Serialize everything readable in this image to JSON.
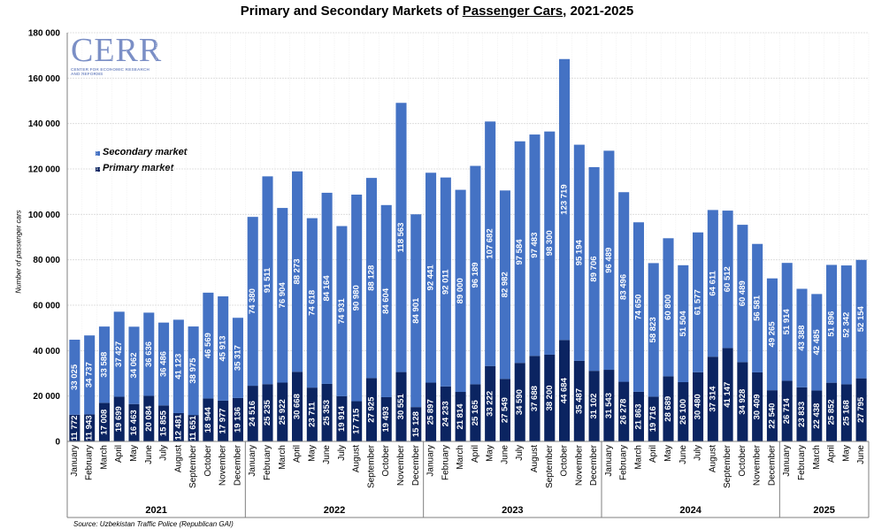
{
  "title_prefix": "Primary and Secondary Markets of ",
  "title_underlined": "Passenger Cars",
  "title_suffix": ", 2021-2025",
  "logo": {
    "name": "CERR",
    "subtitle": "CENTER FOR ECONOMIC RESEARCH AND REFORMS"
  },
  "ylabel": "Number of passenger cars",
  "source": "Source: Uzbekistan Traffic Police (Republican GAI)",
  "colors": {
    "primary": "#0b2461",
    "secondary": "#4472c4",
    "grid": "#d9d9d9",
    "axis": "#7f7f7f"
  },
  "chart_data": {
    "type": "bar",
    "stacked": true,
    "ylim": [
      0,
      180000
    ],
    "yticks": [
      "0",
      "20 000",
      "40 000",
      "60 000",
      "80 000",
      "100 000",
      "120 000",
      "140 000",
      "160 000",
      "180 000"
    ],
    "grid": true,
    "legend_position": "upper-left",
    "years": [
      {
        "label": "2021",
        "count": 12
      },
      {
        "label": "2022",
        "count": 12
      },
      {
        "label": "2023",
        "count": 12
      },
      {
        "label": "2024",
        "count": 12
      },
      {
        "label": "2025",
        "count": 6
      }
    ],
    "categories": [
      "January",
      "February",
      "March",
      "April",
      "May",
      "June",
      "July",
      "August",
      "September",
      "October",
      "November",
      "December",
      "January",
      "February",
      "March",
      "April",
      "May",
      "June",
      "July",
      "August",
      "September",
      "October",
      "November",
      "December",
      "January",
      "February",
      "March",
      "April",
      "May",
      "June",
      "July",
      "August",
      "September",
      "October",
      "November",
      "December",
      "January",
      "February",
      "March",
      "April",
      "May",
      "June",
      "July",
      "August",
      "September",
      "October",
      "November",
      "December",
      "January",
      "February",
      "March",
      "April",
      "May",
      "June"
    ],
    "series": [
      {
        "name": "Secondary market",
        "values": [
          33025,
          34737,
          33588,
          37427,
          34062,
          36636,
          36486,
          41123,
          38975,
          46569,
          45913,
          35317,
          74380,
          91511,
          76904,
          88273,
          74618,
          84164,
          74931,
          90980,
          88128,
          84604,
          118563,
          84901,
          92441,
          92011,
          89000,
          96189,
          107682,
          82982,
          97584,
          97483,
          98300,
          123719,
          95194,
          89706,
          96489,
          83496,
          74650,
          58823,
          60800,
          51504,
          61577,
          64611,
          60512,
          60489,
          56581,
          49265,
          51914,
          43388,
          42485,
          51896,
          52342,
          52154
        ],
        "labels": [
          "33 025",
          "34 737",
          "33 588",
          "37 427",
          "34 062",
          "36 636",
          "36 486",
          "41 123",
          "38 975",
          "46 569",
          "45 913",
          "35 317",
          "74 380",
          "91 511",
          "76 904",
          "88 273",
          "74 618",
          "84 164",
          "74 931",
          "90 980",
          "88 128",
          "84 604",
          "118 563",
          "84 901",
          "92 441",
          "92 011",
          "89 000",
          "96 189",
          "107 682",
          "82 982",
          "97 584",
          "97 483",
          "98 300",
          "123 719",
          "95 194",
          "89 706",
          "96 489",
          "83 496",
          "74 650",
          "58 823",
          "60 800",
          "51 504",
          "61 577",
          "64 611",
          "60 512",
          "60 489",
          "56 581",
          "49 265",
          "51 914",
          "43 388",
          "42 485",
          "51 896",
          "52 342",
          "52 154"
        ]
      },
      {
        "name": "Primary market",
        "values": [
          11772,
          11943,
          17008,
          19699,
          16463,
          20084,
          15855,
          12481,
          11651,
          18944,
          17977,
          19136,
          24516,
          25235,
          25922,
          30668,
          23711,
          25353,
          19914,
          17715,
          27925,
          19493,
          30551,
          15128,
          25897,
          24233,
          21814,
          25165,
          33222,
          27549,
          34590,
          37688,
          38200,
          44684,
          35487,
          31102,
          31543,
          26278,
          21863,
          19716,
          28689,
          26100,
          30480,
          37314,
          41147,
          34928,
          30409,
          22540,
          26714,
          23833,
          22438,
          25852,
          25168,
          27795
        ],
        "labels": [
          "11 772",
          "11 943",
          "17 008",
          "19 699",
          "16 463",
          "20 084",
          "15 855",
          "12 481",
          "11 651",
          "18 944",
          "17 977",
          "19 136",
          "24 516",
          "25 235",
          "25 922",
          "30 668",
          "23 711",
          "25 353",
          "19 914",
          "17 715",
          "27 925",
          "19 493",
          "30 551",
          "15 128",
          "25 897",
          "24 233",
          "21 814",
          "25 165",
          "33 222",
          "27 549",
          "34 590",
          "37 688",
          "38 200",
          "44 684",
          "35 487",
          "31 102",
          "31 543",
          "26 278",
          "21 863",
          "19 716",
          "28 689",
          "26 100",
          "30 480",
          "37 314",
          "41 147",
          "34 928",
          "30 409",
          "22 540",
          "26 714",
          "23 833",
          "22 438",
          "25 852",
          "25 168",
          "27 795"
        ]
      }
    ]
  }
}
